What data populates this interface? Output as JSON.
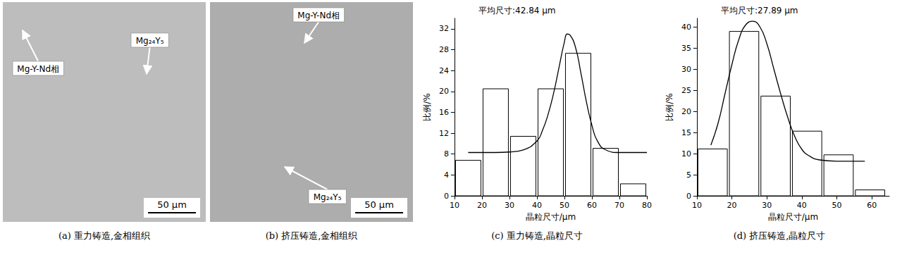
{
  "images": [
    {
      "caption": "(a) 重力铸造,金相组织",
      "labels": [
        "Mg-Y-Nd相",
        "Mg₂₄Y₅"
      ],
      "scale_bar": "50 μm"
    },
    {
      "caption": "(b) 挤压铸造,金相组织",
      "labels": [
        "Mg-Y-Nd相",
        "Mg₂₄Y₅"
      ],
      "scale_bar": "50 μm"
    }
  ],
  "chart_data": [
    {
      "type": "histogram",
      "title": "平均尺寸:42.84 μm",
      "caption": "(c) 重力铸造,晶粒尺寸",
      "x_label": "晶粒尺寸/μm",
      "y_label": "比例/%",
      "bins": [
        10,
        20,
        30,
        40,
        50,
        60,
        70,
        80
      ],
      "values": [
        6.8,
        20.5,
        11.4,
        20.5,
        27.3,
        9.1,
        2.3
      ],
      "fit": {
        "x": [
          15,
          20,
          25,
          30,
          35,
          40,
          42,
          44,
          46,
          48,
          50,
          51,
          52,
          54,
          56,
          58,
          60,
          62,
          65,
          70,
          75,
          80
        ],
        "values": [
          8.3,
          8.3,
          8.3,
          8.4,
          8.8,
          10.5,
          12.5,
          15.5,
          19.5,
          24.5,
          29.5,
          31,
          30.8,
          28.5,
          23.5,
          18,
          13.5,
          10.5,
          8.8,
          8.3,
          8.3,
          8.3
        ]
      },
      "color": "#000000",
      "xlim": [
        10,
        80
      ],
      "xticks": [
        10,
        20,
        30,
        40,
        50,
        60,
        70,
        80
      ],
      "ylim": [
        0,
        34
      ],
      "yticks": [
        0,
        4,
        8,
        12,
        16,
        20,
        24,
        28,
        32
      ],
      "grid": false
    },
    {
      "type": "histogram",
      "title": "平均尺寸:27.89 μm",
      "caption": "(d) 挤压铸造,晶粒尺寸",
      "x_label": "晶粒尺寸/μm",
      "y_label": "比例/%",
      "bins": [
        10,
        19,
        28,
        37,
        46,
        55,
        64
      ],
      "values": [
        11.1,
        38.9,
        23.6,
        15.3,
        9.7,
        1.4
      ],
      "fit": {
        "x": [
          14,
          16,
          18,
          20,
          22,
          24,
          26,
          28,
          30,
          32,
          34,
          36,
          38,
          40,
          42,
          45,
          50,
          55,
          58
        ],
        "values": [
          12,
          17,
          24,
          31,
          37,
          40.5,
          41.3,
          40,
          36,
          30,
          24,
          18.5,
          14,
          11,
          9.5,
          8.5,
          8.2,
          8.2,
          8.2
        ]
      },
      "color": "#000000",
      "xlim": [
        10,
        65
      ],
      "xticks": [
        10,
        20,
        30,
        40,
        50,
        60
      ],
      "ylim": [
        0,
        42
      ],
      "yticks": [
        0,
        5,
        10,
        15,
        20,
        25,
        30,
        35,
        40
      ],
      "grid": false
    }
  ]
}
